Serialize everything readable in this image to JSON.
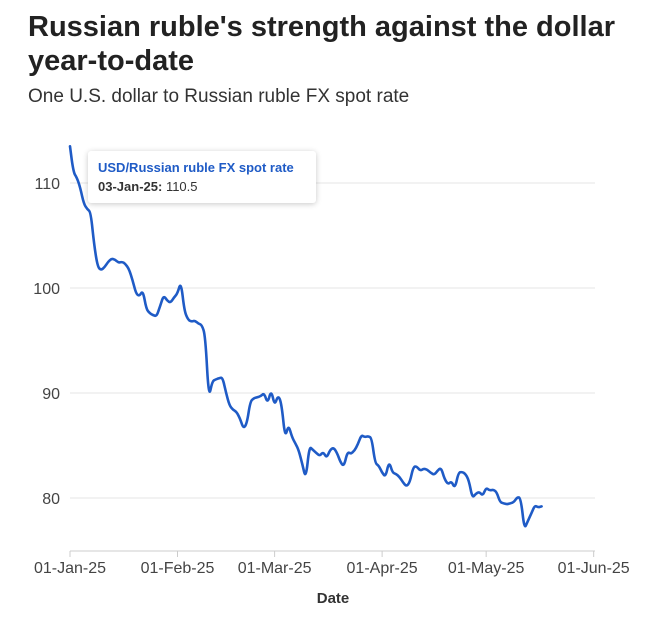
{
  "title": "Russian ruble's strength against the dollar year-to-date",
  "subtitle": "One U.S. dollar to Russian ruble FX spot rate",
  "tooltip": {
    "series": "USD/Russian ruble FX spot rate",
    "date": "03-Jan-25:",
    "value": "110.5"
  },
  "colors": {
    "line": "#1f5bc6",
    "grid": "#e6e6e6",
    "axis": "#cccccc"
  },
  "chart_data": {
    "type": "line",
    "title": "Russian ruble's strength against the dollar year-to-date",
    "subtitle": "One U.S. dollar to Russian ruble FX spot rate",
    "xlabel": "Date",
    "ylabel": "",
    "xlim": [
      0,
      154
    ],
    "ylim": [
      75,
      115
    ],
    "yticks": [
      80,
      90,
      100,
      110
    ],
    "xticks": [
      {
        "label": "01-Jan-25",
        "day": 0
      },
      {
        "label": "01-Feb-25",
        "day": 31
      },
      {
        "label": "01-Mar-25",
        "day": 59
      },
      {
        "label": "01-Apr-25",
        "day": 90
      },
      {
        "label": "01-May-25",
        "day": 120
      },
      {
        "label": "01-Jun-25",
        "day": 151
      }
    ],
    "series": [
      {
        "name": "USD/Russian ruble FX spot rate",
        "points": [
          [
            0,
            113.5
          ],
          [
            1,
            111
          ],
          [
            2,
            110.5
          ],
          [
            3,
            109.5
          ],
          [
            4,
            108
          ],
          [
            5,
            107.5
          ],
          [
            6,
            107.2
          ],
          [
            7,
            104
          ],
          [
            8,
            102
          ],
          [
            9,
            101.7
          ],
          [
            10,
            102
          ],
          [
            11,
            102.5
          ],
          [
            12,
            102.8
          ],
          [
            13,
            102.7
          ],
          [
            14,
            102.4
          ],
          [
            15,
            102.5
          ],
          [
            16,
            102.3
          ],
          [
            17,
            101.8
          ],
          [
            18,
            100.8
          ],
          [
            19,
            99.5
          ],
          [
            20,
            99.2
          ],
          [
            21,
            99.8
          ],
          [
            22,
            98
          ],
          [
            23,
            97.6
          ],
          [
            24,
            97.4
          ],
          [
            25,
            97.3
          ],
          [
            26,
            98.3
          ],
          [
            27,
            99.3
          ],
          [
            28,
            98.8
          ],
          [
            29,
            98.6
          ],
          [
            30,
            99.1
          ],
          [
            31,
            99.5
          ],
          [
            32,
            100.6
          ],
          [
            33,
            97.8
          ],
          [
            34,
            97
          ],
          [
            35,
            96.8
          ],
          [
            36,
            96.9
          ],
          [
            37,
            96.6
          ],
          [
            38,
            96.5
          ],
          [
            39,
            95.5
          ],
          [
            40,
            89.5
          ],
          [
            41,
            91.1
          ],
          [
            42,
            91.3
          ],
          [
            43,
            91.4
          ],
          [
            44,
            91.5
          ],
          [
            45,
            90
          ],
          [
            46,
            88.8
          ],
          [
            47,
            88.4
          ],
          [
            48,
            88.2
          ],
          [
            49,
            87.6
          ],
          [
            50,
            86.6
          ],
          [
            51,
            87.1
          ],
          [
            52,
            89.2
          ],
          [
            53,
            89.5
          ],
          [
            54,
            89.6
          ],
          [
            55,
            89.7
          ],
          [
            56,
            90
          ],
          [
            57,
            89
          ],
          [
            58,
            90.3
          ],
          [
            59,
            88.8
          ],
          [
            60,
            89.8
          ],
          [
            61,
            89
          ],
          [
            62,
            85.7
          ],
          [
            63,
            87
          ],
          [
            64,
            85.8
          ],
          [
            65,
            85.2
          ],
          [
            66,
            84.5
          ],
          [
            67,
            83.2
          ],
          [
            68,
            81.8
          ],
          [
            69,
            84.9
          ],
          [
            70,
            84.6
          ],
          [
            71,
            84.3
          ],
          [
            72,
            84
          ],
          [
            73,
            84.4
          ],
          [
            74,
            83.8
          ],
          [
            75,
            84.6
          ],
          [
            76,
            84.8
          ],
          [
            77,
            84.3
          ],
          [
            78,
            83.4
          ],
          [
            79,
            83
          ],
          [
            80,
            84.4
          ],
          [
            81,
            84.2
          ],
          [
            82,
            84.5
          ],
          [
            83,
            85.1
          ],
          [
            84,
            86
          ],
          [
            85,
            85.8
          ],
          [
            86,
            85.9
          ],
          [
            87,
            85.7
          ],
          [
            88,
            83.3
          ],
          [
            89,
            83.1
          ],
          [
            90,
            82.4
          ],
          [
            91,
            82
          ],
          [
            92,
            83.5
          ],
          [
            93,
            82.4
          ],
          [
            94,
            82.3
          ],
          [
            95,
            82
          ],
          [
            96,
            81.5
          ],
          [
            97,
            81.1
          ],
          [
            98,
            81.5
          ],
          [
            99,
            83
          ],
          [
            100,
            83
          ],
          [
            101,
            82.6
          ],
          [
            102,
            82.8
          ],
          [
            103,
            82.7
          ],
          [
            104,
            82.4
          ],
          [
            105,
            82.2
          ],
          [
            106,
            82.6
          ],
          [
            107,
            82.9
          ],
          [
            108,
            81.8
          ],
          [
            109,
            81.3
          ],
          [
            110,
            81.6
          ],
          [
            111,
            80.9
          ],
          [
            112,
            82.4
          ],
          [
            113,
            82.5
          ],
          [
            114,
            82.3
          ],
          [
            115,
            81.7
          ],
          [
            116,
            80
          ],
          [
            117,
            80.4
          ],
          [
            118,
            80.6
          ],
          [
            119,
            80.2
          ],
          [
            120,
            81
          ],
          [
            121,
            80.7
          ],
          [
            122,
            80.8
          ],
          [
            123,
            80.6
          ],
          [
            124,
            79.6
          ],
          [
            125,
            79.5
          ],
          [
            126,
            79.4
          ],
          [
            127,
            79.5
          ],
          [
            128,
            79.6
          ],
          [
            129,
            80.1
          ],
          [
            130,
            80
          ],
          [
            131,
            77
          ],
          [
            132,
            77.8
          ],
          [
            133,
            78.5
          ],
          [
            134,
            79.3
          ],
          [
            135,
            79.1
          ],
          [
            136,
            79.2
          ]
        ]
      }
    ]
  }
}
